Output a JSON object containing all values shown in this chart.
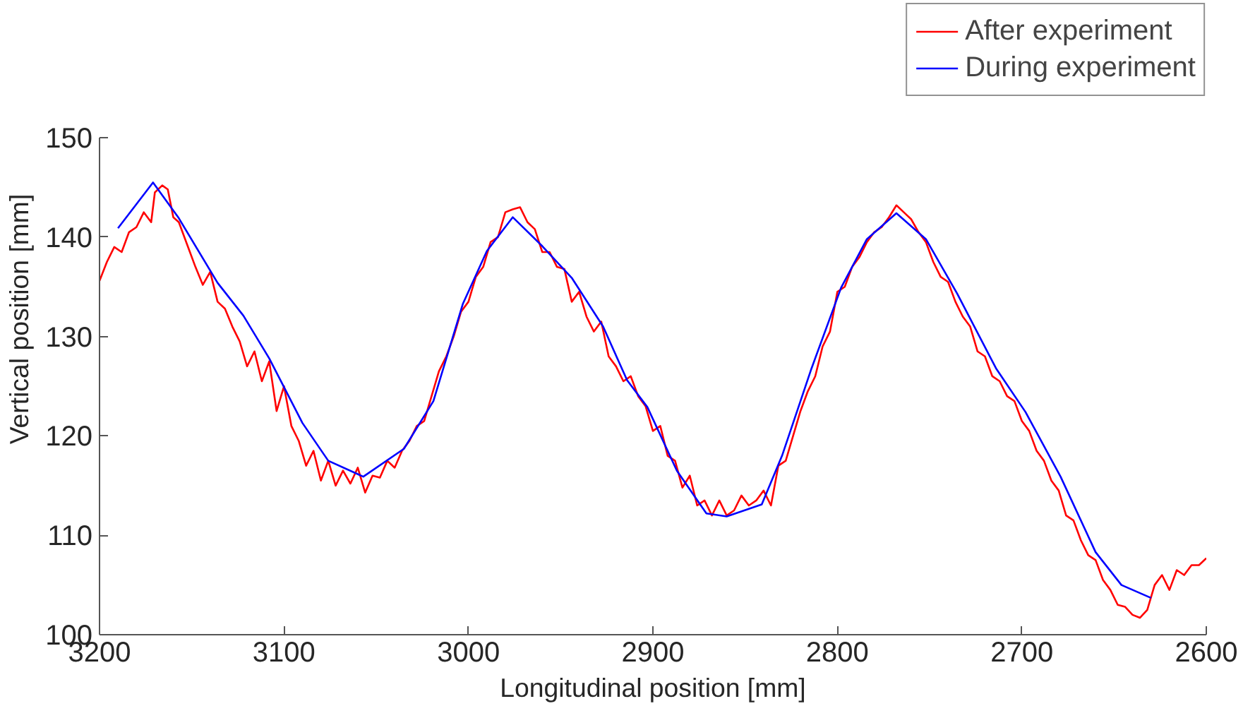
{
  "chart_data": {
    "type": "line",
    "xlabel": "Longitudinal position [mm]",
    "ylabel": "Vertical position [mm]",
    "xlim": [
      3200,
      2600
    ],
    "xticks": [
      3200,
      3100,
      3000,
      2900,
      2800,
      2700,
      2600
    ],
    "ylim": [
      100,
      150
    ],
    "yticks": [
      100,
      110,
      120,
      130,
      140,
      150
    ],
    "grid": false,
    "legend": "top right",
    "marker": "none",
    "line_style": "solid",
    "series": [
      {
        "name": "After experiment",
        "color": "#ff0000",
        "x": [
          3200,
          3196,
          3192,
          3188,
          3184,
          3180,
          3176,
          3172,
          3170,
          3166,
          3163,
          3160,
          3157,
          3152,
          3148,
          3144,
          3140,
          3136,
          3132,
          3128,
          3124,
          3120,
          3116,
          3112,
          3108,
          3104,
          3100,
          3096,
          3092,
          3088,
          3084,
          3080,
          3076,
          3072,
          3068,
          3064,
          3060,
          3056,
          3052,
          3048,
          3044,
          3040,
          3036,
          3032,
          3028,
          3024,
          3020,
          3016,
          3012,
          3008,
          3004,
          3000,
          2996,
          2992,
          2988,
          2984,
          2980,
          2976,
          2972,
          2968,
          2964,
          2960,
          2956,
          2952,
          2948,
          2944,
          2940,
          2936,
          2932,
          2928,
          2924,
          2920,
          2916,
          2912,
          2908,
          2904,
          2900,
          2896,
          2892,
          2888,
          2884,
          2880,
          2876,
          2872,
          2868,
          2864,
          2860,
          2856,
          2852,
          2848,
          2844,
          2840,
          2836,
          2832,
          2828,
          2824,
          2820,
          2816,
          2812,
          2808,
          2804,
          2800,
          2796,
          2792,
          2788,
          2784,
          2780,
          2776,
          2772,
          2768,
          2764,
          2760,
          2756,
          2752,
          2748,
          2744,
          2740,
          2736,
          2732,
          2728,
          2724,
          2720,
          2716,
          2712,
          2708,
          2704,
          2700,
          2696,
          2692,
          2688,
          2684,
          2680,
          2676,
          2672,
          2668,
          2664,
          2660,
          2656,
          2652,
          2648,
          2644,
          2640,
          2636,
          2632,
          2628,
          2624,
          2620,
          2616,
          2612,
          2608,
          2604,
          2600
        ],
        "values": [
          135.6,
          137.5,
          139,
          138.5,
          140.5,
          141,
          142.5,
          141.5,
          144.5,
          145.2,
          144.8,
          142,
          141.5,
          139,
          137,
          135.2,
          136.5,
          133.5,
          132.8,
          131,
          129.5,
          127,
          128.5,
          125.5,
          127.5,
          122.5,
          125,
          121,
          119.5,
          117,
          118.5,
          115.5,
          117.5,
          115,
          116.5,
          115.2,
          116.8,
          114.3,
          116,
          115.8,
          117.5,
          116.8,
          118.5,
          119.5,
          121,
          121.5,
          124,
          126.5,
          128,
          130,
          132.5,
          133.5,
          136,
          137,
          139.5,
          140,
          142.5,
          142.8,
          143,
          141.5,
          140.8,
          138.5,
          138.5,
          137,
          136.8,
          133.5,
          134.5,
          132,
          130.5,
          131.5,
          128,
          127,
          125.5,
          126,
          124,
          123,
          120.5,
          121,
          118,
          117.5,
          114.8,
          116,
          113,
          113.5,
          112,
          113.5,
          112,
          112.5,
          114,
          113,
          113.5,
          114.5,
          113,
          117,
          117.5,
          120,
          122.5,
          124.5,
          126,
          129,
          130.5,
          134.5,
          135,
          137,
          138,
          139.5,
          140.5,
          141,
          142,
          143.2,
          142.5,
          141.8,
          140.5,
          139.5,
          137.5,
          136,
          135.5,
          133.5,
          132,
          131,
          128.5,
          128,
          126,
          125.5,
          124,
          123.5,
          121.5,
          120.5,
          118.5,
          117.5,
          115.5,
          114.5,
          112,
          111.5,
          109.5,
          108,
          107.5,
          105.5,
          104.5,
          103,
          102.8,
          102,
          101.7,
          102.5,
          105,
          106,
          104.5,
          106.5,
          106,
          107,
          107,
          107.7
        ]
      },
      {
        "name": "During experiment",
        "color": "#0000ff",
        "x": [
          3190,
          3171,
          3157,
          3136,
          3122,
          3108,
          3090,
          3076,
          3057,
          3035,
          3019,
          3003,
          2990,
          2976,
          2960,
          2944,
          2927,
          2914,
          2903,
          2887,
          2871,
          2860,
          2841,
          2830,
          2814,
          2798,
          2784,
          2768,
          2752,
          2735,
          2714,
          2698,
          2679,
          2660,
          2646,
          2630
        ],
        "values": [
          140.9,
          145.5,
          141.9,
          135.4,
          132.1,
          127.8,
          121.3,
          117.5,
          115.9,
          118.7,
          123.5,
          133.3,
          138.6,
          142.0,
          139.1,
          135.9,
          131.0,
          125.6,
          122.9,
          116.5,
          112.2,
          111.9,
          113.1,
          118.0,
          126.8,
          134.9,
          139.8,
          142.4,
          139.8,
          134.3,
          126.8,
          122.4,
          115.9,
          108.3,
          105.0,
          103.7
        ]
      }
    ]
  }
}
